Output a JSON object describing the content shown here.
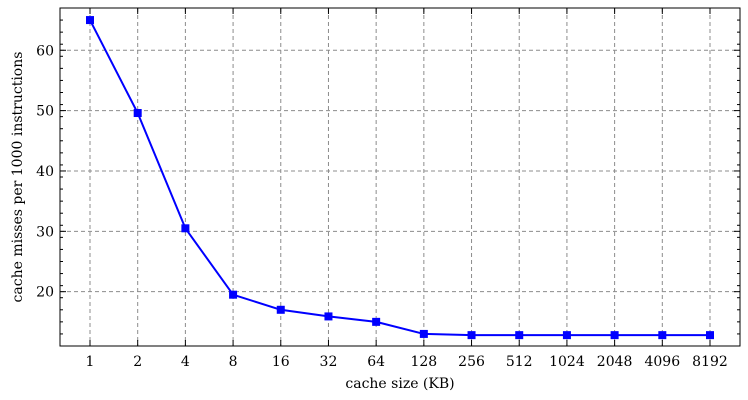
{
  "chart_data": {
    "type": "line",
    "xscale": "log2",
    "categories": [
      "1",
      "2",
      "4",
      "8",
      "16",
      "32",
      "64",
      "128",
      "256",
      "512",
      "1024",
      "2048",
      "4096",
      "8192"
    ],
    "series": [
      {
        "values": [
          65.0,
          49.6,
          30.5,
          19.5,
          17.0,
          15.9,
          15.0,
          13.0,
          12.8,
          12.8,
          12.8,
          12.8,
          12.8,
          12.8
        ],
        "color": "#0000ff",
        "marker": "square"
      }
    ],
    "title": "",
    "xlabel": "cache size (KB)",
    "ylabel": "cache misses per 1000 instructions",
    "ylim": [
      11,
      67
    ],
    "yticks": [
      20,
      30,
      40,
      50,
      60
    ],
    "grid": true,
    "grid_style": "dashed",
    "legend": false
  }
}
